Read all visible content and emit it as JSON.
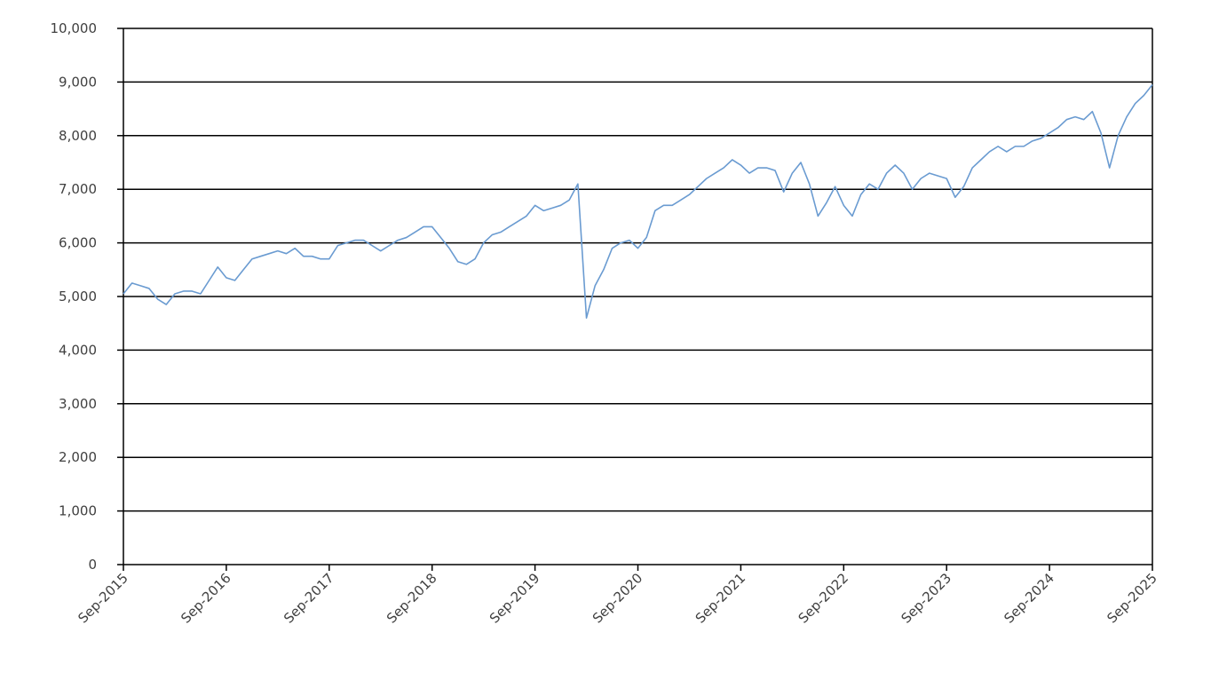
{
  "chart_data": {
    "type": "line",
    "x": [
      "2015-09",
      "2015-10",
      "2015-11",
      "2015-12",
      "2016-01",
      "2016-02",
      "2016-03",
      "2016-04",
      "2016-05",
      "2016-06",
      "2016-07",
      "2016-08",
      "2016-09",
      "2016-10",
      "2016-11",
      "2016-12",
      "2017-01",
      "2017-02",
      "2017-03",
      "2017-04",
      "2017-05",
      "2017-06",
      "2017-07",
      "2017-08",
      "2017-09",
      "2017-10",
      "2017-11",
      "2017-12",
      "2018-01",
      "2018-02",
      "2018-03",
      "2018-04",
      "2018-05",
      "2018-06",
      "2018-07",
      "2018-08",
      "2018-09",
      "2018-10",
      "2018-11",
      "2018-12",
      "2019-01",
      "2019-02",
      "2019-03",
      "2019-04",
      "2019-05",
      "2019-06",
      "2019-07",
      "2019-08",
      "2019-09",
      "2019-10",
      "2019-11",
      "2019-12",
      "2020-01",
      "2020-02",
      "2020-03",
      "2020-04",
      "2020-05",
      "2020-06",
      "2020-07",
      "2020-08",
      "2020-09",
      "2020-10",
      "2020-11",
      "2020-12",
      "2021-01",
      "2021-02",
      "2021-03",
      "2021-04",
      "2021-05",
      "2021-06",
      "2021-07",
      "2021-08",
      "2021-09",
      "2021-10",
      "2021-11",
      "2021-12",
      "2022-01",
      "2022-02",
      "2022-03",
      "2022-04",
      "2022-05",
      "2022-06",
      "2022-07",
      "2022-08",
      "2022-09",
      "2022-10",
      "2022-11",
      "2022-12",
      "2023-01",
      "2023-02",
      "2023-03",
      "2023-04",
      "2023-05",
      "2023-06",
      "2023-07",
      "2023-08",
      "2023-09",
      "2023-10",
      "2023-11",
      "2023-12",
      "2024-01",
      "2024-02",
      "2024-03",
      "2024-04",
      "2024-05",
      "2024-06",
      "2024-07",
      "2024-08",
      "2024-09",
      "2024-10",
      "2024-11",
      "2024-12",
      "2025-01",
      "2025-02",
      "2025-03",
      "2025-04",
      "2025-05",
      "2025-06",
      "2025-07",
      "2025-08",
      "2025-09"
    ],
    "series": [
      {
        "color": "#6a9bd1",
        "values": [
          5050,
          5250,
          5200,
          5150,
          4950,
          4850,
          5050,
          5100,
          5100,
          5050,
          5300,
          5550,
          5350,
          5300,
          5500,
          5700,
          5750,
          5800,
          5850,
          5800,
          5900,
          5750,
          5750,
          5700,
          5700,
          5950,
          6000,
          6050,
          6050,
          5950,
          5850,
          5950,
          6050,
          6100,
          6200,
          6300,
          6300,
          6100,
          5900,
          5650,
          5600,
          5700,
          6000,
          6150,
          6200,
          6300,
          6400,
          6500,
          6700,
          6600,
          6650,
          6700,
          6800,
          7100,
          4600,
          5200,
          5500,
          5900,
          6000,
          6050,
          5900,
          6100,
          6600,
          6700,
          6700,
          6800,
          6900,
          7050,
          7200,
          7300,
          7400,
          7550,
          7450,
          7300,
          7400,
          7400,
          7350,
          6950,
          7300,
          7500,
          7100,
          6500,
          6750,
          7050,
          6700,
          6500,
          6900,
          7100,
          7000,
          7300,
          7450,
          7300,
          7000,
          7200,
          7300,
          7250,
          7200,
          6850,
          7050,
          7400,
          7550,
          7700,
          7800,
          7700,
          7800,
          7800,
          7900,
          7950,
          8050,
          8150,
          8300,
          8350,
          8300,
          8450,
          8050,
          7400,
          8000,
          8350,
          8600,
          8750,
          8950
        ]
      }
    ],
    "xlim": [
      "2015-09",
      "2025-09"
    ],
    "xticks": [
      {
        "value": "2015-09",
        "label": "Sep-2015"
      },
      {
        "value": "2016-09",
        "label": "Sep-2016"
      },
      {
        "value": "2017-09",
        "label": "Sep-2017"
      },
      {
        "value": "2018-09",
        "label": "Sep-2018"
      },
      {
        "value": "2019-09",
        "label": "Sep-2019"
      },
      {
        "value": "2020-09",
        "label": "Sep-2020"
      },
      {
        "value": "2021-09",
        "label": "Sep-2021"
      },
      {
        "value": "2022-09",
        "label": "Sep-2022"
      },
      {
        "value": "2023-09",
        "label": "Sep-2023"
      },
      {
        "value": "2024-09",
        "label": "Sep-2024"
      },
      {
        "value": "2025-09",
        "label": "Sep-2025"
      }
    ],
    "ylim": [
      0,
      10000
    ],
    "yticks": [
      0,
      {
        "value": 1000,
        "label": "1,000"
      },
      {
        "value": 2000,
        "label": "2,000"
      },
      {
        "value": 3000,
        "label": "3,000"
      },
      {
        "value": 4000,
        "label": "4,000"
      },
      {
        "value": 5000,
        "label": "5,000"
      },
      {
        "value": 6000,
        "label": "6,000"
      },
      {
        "value": 7000,
        "label": "7,000"
      },
      {
        "value": 8000,
        "label": "8,000"
      },
      {
        "value": 9000,
        "label": "9,000"
      },
      {
        "value": 10000,
        "label": "10,000"
      }
    ],
    "grid": true
  }
}
